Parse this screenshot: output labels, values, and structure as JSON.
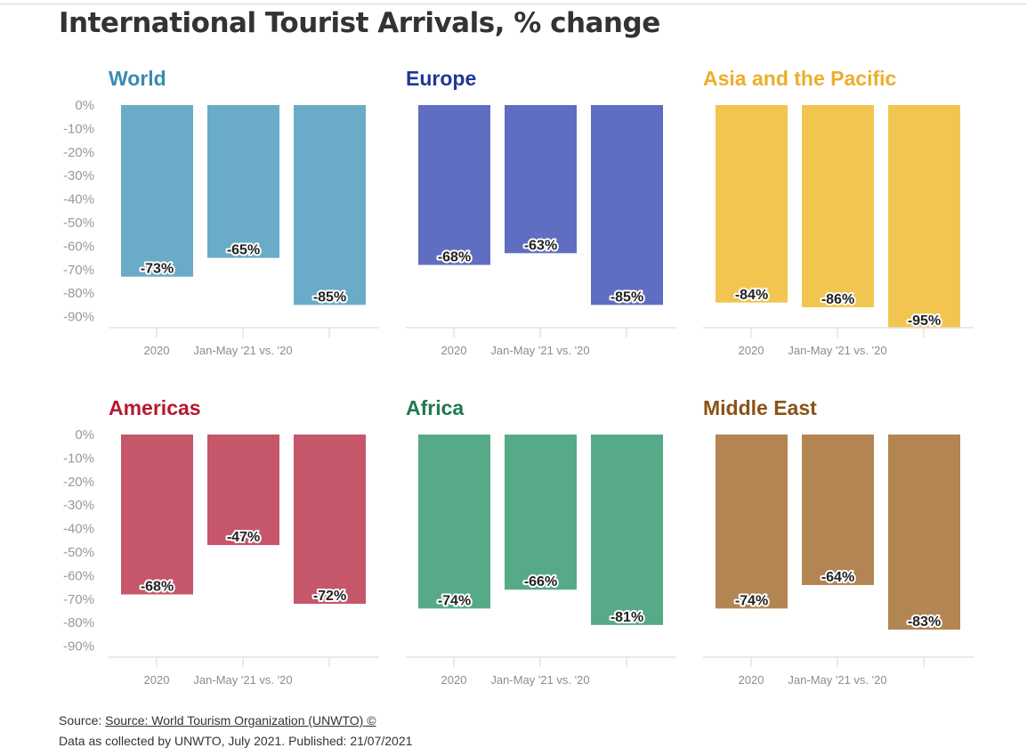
{
  "title": "International Tourist Arrivals, % change",
  "chart_data": [
    {
      "type": "bar",
      "title": "World",
      "color": "#6aabc8",
      "title_color": "#3a8ab4",
      "categories": [
        "2020",
        "Jan-May '21 vs. '20",
        ""
      ],
      "values": [
        -73,
        -65,
        -85
      ],
      "data_labels": [
        "-73%",
        "-65%",
        "-85%"
      ],
      "ylim": [
        -95,
        0
      ],
      "yticks": [
        "0%",
        "-10%",
        "-20%",
        "-30%",
        "-40%",
        "-50%",
        "-60%",
        "-70%",
        "-80%",
        "-90%"
      ]
    },
    {
      "type": "bar",
      "title": "Europe",
      "color": "#5f6ec0",
      "title_color": "#1f3899",
      "categories": [
        "2020",
        "Jan-May '21 vs. '20",
        ""
      ],
      "values": [
        -68,
        -63,
        -85
      ],
      "data_labels": [
        "-68%",
        "-63%",
        "-85%"
      ],
      "ylim": [
        -95,
        0
      ]
    },
    {
      "type": "bar",
      "title": "Asia and the Pacific",
      "color": "#f2c550",
      "title_color": "#ecae2a",
      "categories": [
        "2020",
        "Jan-May '21 vs. '20",
        ""
      ],
      "values": [
        -84,
        -86,
        -95
      ],
      "data_labels": [
        "-84%",
        "-86%",
        "-95%"
      ],
      "ylim": [
        -95,
        0
      ]
    },
    {
      "type": "bar",
      "title": "Americas",
      "color": "#c6566a",
      "title_color": "#b5192f",
      "categories": [
        "2020",
        "Jan-May '21 vs. '20",
        ""
      ],
      "values": [
        -68,
        -47,
        -72
      ],
      "data_labels": [
        "-68%",
        "-47%",
        "-72%"
      ],
      "ylim": [
        -95,
        0
      ],
      "yticks": [
        "0%",
        "-10%",
        "-20%",
        "-30%",
        "-40%",
        "-50%",
        "-60%",
        "-70%",
        "-80%",
        "-90%"
      ]
    },
    {
      "type": "bar",
      "title": "Africa",
      "color": "#56aa88",
      "title_color": "#1f7a52",
      "categories": [
        "2020",
        "Jan-May '21 vs. '20",
        ""
      ],
      "values": [
        -74,
        -66,
        -81
      ],
      "data_labels": [
        "-74%",
        "-66%",
        "-81%"
      ],
      "ylim": [
        -95,
        0
      ]
    },
    {
      "type": "bar",
      "title": "Middle East",
      "color": "#b38552",
      "title_color": "#8a5216",
      "categories": [
        "2020",
        "Jan-May '21 vs. '20",
        ""
      ],
      "values": [
        -74,
        -64,
        -83
      ],
      "data_labels": [
        "-74%",
        "-64%",
        "-83%"
      ],
      "ylim": [
        -95,
        0
      ]
    }
  ],
  "footer": {
    "source_prefix": "Source: ",
    "source_link": "Source: World Tourism Organization (UNWTO) ©",
    "note": "Data as collected by UNWTO, July 2021. Published: 21/07/2021"
  }
}
